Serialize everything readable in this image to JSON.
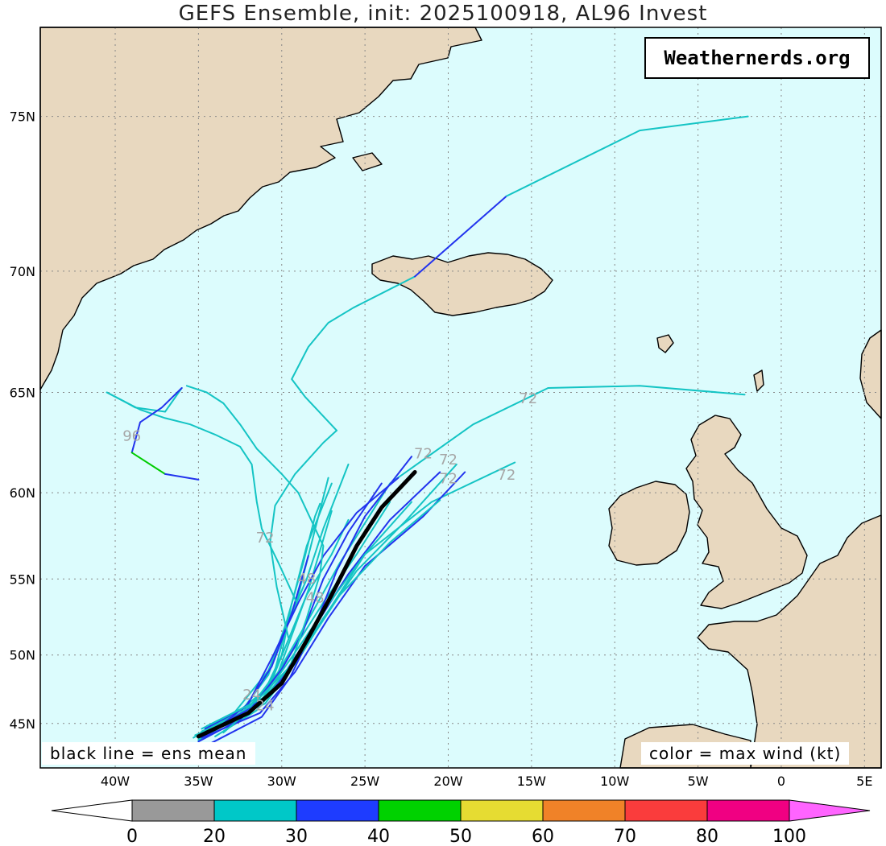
{
  "title": "GEFS Ensemble, init: 2025100918, AL96 Invest",
  "watermark": "Weathernerds.org",
  "note_left": "black line = ens mean",
  "note_right": "color = max wind (kt)",
  "map": {
    "lon_range": [
      -44.5,
      6
    ],
    "lat_range": [
      41.5,
      77.3
    ],
    "lat_labels": [
      "75N",
      "70N",
      "65N",
      "60N",
      "55N",
      "50N",
      "45N"
    ],
    "lon_labels": [
      "40W",
      "35W",
      "30W",
      "25W",
      "20W",
      "15W",
      "10W",
      "5W",
      "0",
      "5E"
    ],
    "track_labels": [
      {
        "text": "96",
        "lon": -39,
        "lat": 62.7
      },
      {
        "text": "72",
        "lon": -31,
        "lat": 57.2
      },
      {
        "text": "72",
        "lon": -15.2,
        "lat": 64.5
      },
      {
        "text": "72",
        "lon": -21.5,
        "lat": 61.8
      },
      {
        "text": "72",
        "lon": -20,
        "lat": 61.5
      },
      {
        "text": "72",
        "lon": -20,
        "lat": 60.5
      },
      {
        "text": "72",
        "lon": -16.5,
        "lat": 60.7
      },
      {
        "text": "48",
        "lon": -28.5,
        "lat": 54.7
      },
      {
        "text": "48",
        "lon": -28,
        "lat": 53.5
      },
      {
        "text": "24",
        "lon": -31.8,
        "lat": 46.8
      },
      {
        "text": "24",
        "lon": -31,
        "lat": 46
      }
    ]
  },
  "colorbar": {
    "ticks": [
      "0",
      "20",
      "30",
      "40",
      "50",
      "60",
      "70",
      "80",
      "100"
    ],
    "colors": [
      "#999999",
      "#00c8c8",
      "#1e3cff",
      "#00d200",
      "#e6dc32",
      "#f08228",
      "#fa3c3c",
      "#f00082",
      "#ff64ff"
    ]
  },
  "chart_data": {
    "type": "line",
    "title": "GEFS Ensemble, init: 2025100918, AL96 Invest",
    "xlim": [
      -44.5,
      6
    ],
    "ylim": [
      41.5,
      77.3
    ],
    "wind_colors": {
      "cyan": "20-30 kt",
      "blue": "30-40 kt",
      "green": "40-50 kt"
    },
    "series": [
      {
        "name": "ens mean",
        "color": "black",
        "lon": [
          -35,
          -32,
          -30,
          -28.5,
          -27,
          -25.5,
          -24,
          -22
        ],
        "lat": [
          44,
          45.8,
          48,
          51,
          54,
          57,
          59.2,
          61.1
        ]
      },
      {
        "color": "cyan",
        "lon": [
          -35,
          -33,
          -31,
          -30,
          -29.5,
          -28.5,
          -27
        ],
        "lat": [
          44.2,
          45.5,
          47.5,
          50,
          53,
          57,
          60.5
        ]
      },
      {
        "color": "cyan",
        "lon": [
          -34.5,
          -32,
          -30.5,
          -29.7,
          -28.5,
          -27.5,
          -26
        ],
        "lat": [
          44.8,
          46,
          48.5,
          52,
          55,
          58,
          61.5
        ]
      },
      {
        "color": "cyan",
        "lon": [
          -35,
          -33,
          -31,
          -29.5,
          -27.5,
          -25.5,
          -23.5
        ],
        "lat": [
          43.8,
          45.2,
          47.3,
          50,
          53.5,
          56.5,
          59.5
        ]
      },
      {
        "color": "cyan",
        "lon": [
          -34,
          -31.5,
          -29.5,
          -27.5,
          -25.5,
          -22.5,
          -19.5
        ],
        "lat": [
          44,
          46,
          49,
          52.5,
          55.5,
          58.5,
          61.5
        ]
      },
      {
        "color": "cyan",
        "lon": [
          -34.8,
          -31,
          -29,
          -27,
          -25,
          -21,
          -16
        ],
        "lat": [
          44.4,
          46.5,
          49.7,
          53.3,
          56.5,
          59.5,
          61.6
        ]
      },
      {
        "color": "cyan",
        "lon": [
          -33.5,
          -31,
          -29.8,
          -28.5,
          -27,
          -26
        ],
        "lat": [
          44.6,
          47,
          50.5,
          54,
          56.5,
          58.5
        ]
      },
      {
        "color": "cyan",
        "lon": [
          -35,
          -32.5,
          -30.5,
          -28.6,
          -26.5,
          -23.5,
          -18.5,
          -14
        ],
        "lat": [
          43.7,
          45.6,
          48.2,
          52,
          56,
          60.5,
          63.5,
          65.2
        ]
      },
      {
        "color": "cyan",
        "lon": [
          -14,
          -8.5,
          -2.2
        ],
        "lat": [
          65.2,
          65.3,
          64.9
        ]
      },
      {
        "color": "cyan",
        "lon": [
          -35.2,
          -32.5,
          -30.2,
          -28.4,
          -27
        ],
        "lat": [
          44.1,
          45.4,
          48.8,
          54.3,
          59
        ]
      },
      {
        "color": "cyan",
        "lon": [
          -34.5,
          -32.5,
          -30.8,
          -29.7,
          -28.7,
          -28,
          -27.7
        ],
        "lat": [
          44,
          45.8,
          48.6,
          52.3,
          56,
          58.7,
          59.4
        ]
      },
      {
        "color": "cyan",
        "lon": [
          -35.3,
          -32.8,
          -30.8,
          -29,
          -27.2
        ],
        "lat": [
          43.9,
          45.9,
          48.9,
          54,
          60.8
        ]
      },
      {
        "color": "blue",
        "lon": [
          -35,
          -32.5,
          -30.2,
          -28.2,
          -26,
          -23.5,
          -20.5
        ],
        "lat": [
          43.6,
          45.3,
          48,
          51.6,
          55.3,
          58.5,
          61.1
        ]
      },
      {
        "color": "blue",
        "lon": [
          -34.5,
          -31.8,
          -30,
          -28.8,
          -27.5,
          -26,
          -24
        ],
        "lat": [
          44.3,
          46.2,
          49,
          51.4,
          55,
          57.8,
          60.5
        ]
      },
      {
        "color": "blue",
        "lon": [
          -34.8,
          -31.3,
          -29.2,
          -27.2,
          -25,
          -21.5,
          -19
        ],
        "lat": [
          43.9,
          45.8,
          48.8,
          52.5,
          55.8,
          58.7,
          61.1
        ]
      },
      {
        "color": "blue",
        "lon": [
          -34,
          -32,
          -30.5,
          -29,
          -27.5,
          -25.5,
          -23
        ],
        "lat": [
          44.5,
          46.5,
          50,
          53.5,
          56.4,
          58.9,
          60.8
        ]
      },
      {
        "color": "blue",
        "lon": [
          -34.6,
          -32.2,
          -30.6,
          -29.4,
          -28.4
        ],
        "lat": [
          44.6,
          46.2,
          49.2,
          52.8,
          56.4
        ]
      },
      {
        "color": "blue",
        "lon": [
          -34.2,
          -31.2,
          -29.5,
          -28,
          -26.7,
          -25,
          -22.2
        ],
        "lat": [
          43.5,
          45.5,
          48.4,
          52,
          55.5,
          58.7,
          61.9
        ]
      },
      {
        "color": "cyan",
        "lon": [
          -33.5,
          -31.2,
          -29.3,
          -27.2,
          -25,
          -22.2
        ],
        "lat": [
          44.3,
          46.8,
          50,
          53.4,
          56.5,
          59.5
        ]
      },
      {
        "color": "cyan",
        "lon": [
          -34.5,
          -31,
          -28.6,
          -26.5,
          -23.5,
          -20.5
        ],
        "lat": [
          44.8,
          47,
          50.5,
          54,
          57.2,
          59.6
        ]
      },
      {
        "color": "cyan",
        "lon": [
          -34.8,
          -31.6,
          -29.5,
          -28.5,
          -27.7,
          -27.5,
          -29
        ],
        "lat": [
          44.6,
          46.6,
          49.2,
          52.5,
          55.3,
          57,
          60
        ]
      },
      {
        "color": "cyan",
        "lon": [
          -29,
          -30,
          -31.5,
          -32.5,
          -33.5,
          -34.5,
          -35.7
        ],
        "lat": [
          60,
          61,
          62.3,
          63.5,
          64.5,
          65,
          65.3
        ]
      },
      {
        "color": "cyan",
        "lon": [
          -29.1,
          -30.2,
          -31.2,
          -31.5,
          -31.8,
          -32.5
        ],
        "lat": [
          53.5,
          56,
          58,
          59.5,
          61.5,
          62.4
        ]
      },
      {
        "color": "cyan",
        "lon": [
          -32.5,
          -34,
          -35.5,
          -37,
          -38.5,
          -39.5,
          -40.5
        ],
        "lat": [
          62.4,
          63,
          63.5,
          63.8,
          64.2,
          64.6,
          65
        ]
      },
      {
        "color": "cyan",
        "lon": [
          -40.5,
          -39.5,
          -38.8,
          -37,
          -36
        ],
        "lat": [
          65,
          64.6,
          64.3,
          64.1,
          65.2
        ]
      },
      {
        "color": "blue",
        "lon": [
          -36,
          -37.2,
          -38.5,
          -39
        ],
        "lat": [
          65.2,
          64.3,
          63.6,
          62.1
        ]
      },
      {
        "color": "green",
        "lon": [
          -39,
          -37
        ],
        "lat": [
          62.1,
          61
        ]
      },
      {
        "color": "blue",
        "lon": [
          -37,
          -35
        ],
        "lat": [
          61,
          60.7
        ]
      },
      {
        "color": "cyan",
        "lon": [
          -29.6,
          -30.3,
          -30.7,
          -30.4,
          -29.2,
          -27.5,
          -26.7
        ],
        "lat": [
          51.2,
          54.5,
          57.2,
          59.3,
          61,
          62.6,
          63.2
        ]
      },
      {
        "color": "cyan",
        "lon": [
          -26.7,
          -28.6,
          -29.4,
          -28.4,
          -27.2,
          -25.7,
          -22
        ],
        "lat": [
          63.2,
          64.8,
          65.6,
          67,
          68,
          68.6,
          69.8
        ]
      },
      {
        "color": "blue",
        "lon": [
          -22,
          -16.5
        ],
        "lat": [
          69.8,
          72.6
        ]
      },
      {
        "color": "cyan",
        "lon": [
          -16.5,
          -8.5,
          -2
        ],
        "lat": [
          72.6,
          74.6,
          75
        ]
      }
    ]
  }
}
